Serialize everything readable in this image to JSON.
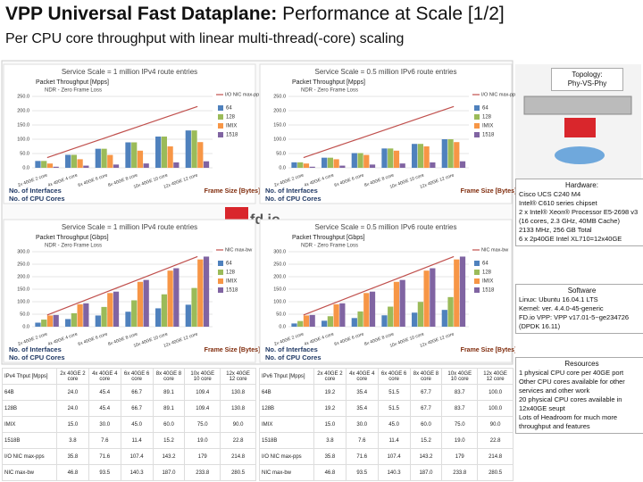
{
  "header": {
    "title_bold": "VPP Universal Fast Dataplane:",
    "title_rest": "Performance at Scale [1/2]",
    "subtitle": "Per CPU core throughput with linear multi-thread(-core) scaling"
  },
  "charts": [
    {
      "type": "bar",
      "title": "Service Scale = 1 million IPv4 route entries",
      "y_label": "Packet Throughput [Mpps]",
      "note": "NDR - Zero Frame Loss",
      "x_label": [
        "No. of Interfaces",
        "No. of CPU Cores"
      ],
      "z_label": "Frame Size [Bytes]",
      "categories": [
        "2x 40GE 2 core",
        "4x 40GE 4 core",
        "6x 40GE 6 core",
        "8x 40GE 8 core",
        "10x 40GE 10 core",
        "12x 40GE 12 core"
      ],
      "ylim": [
        0,
        250
      ],
      "yticks": [
        {
          "value": 0,
          "label": "0.0"
        },
        {
          "value": 50,
          "label": "50.0"
        },
        {
          "value": 100,
          "label": "100.0"
        },
        {
          "value": 150,
          "label": "150.0"
        },
        {
          "value": 200,
          "label": "200.0"
        },
        {
          "value": 250,
          "label": "250.0"
        }
      ],
      "series": [
        {
          "name": "64",
          "color": "#4f81bd",
          "values": [
            24.0,
            45.4,
            66.7,
            89.1,
            109.4,
            130.8
          ]
        },
        {
          "name": "128",
          "color": "#9bbb59",
          "values": [
            24.0,
            45.4,
            66.7,
            89.1,
            109.4,
            130.8
          ]
        },
        {
          "name": "IMIX",
          "color": "#f79646",
          "values": [
            15.0,
            30.0,
            45.0,
            60.0,
            75.0,
            90.0
          ]
        },
        {
          "name": "1518",
          "color": "#8064a2",
          "values": [
            3.8,
            7.6,
            11.4,
            15.2,
            19.0,
            22.8
          ]
        }
      ],
      "line": {
        "name": "I/O NIC max-pps",
        "color": "#c0504d",
        "values": [
          35.8,
          71.6,
          107.4,
          143.2,
          179,
          214.8
        ]
      }
    },
    {
      "type": "bar",
      "title": "Service Scale = 0.5 million IPv6 route entries",
      "y_label": "Packet Throughput [Mpps]",
      "note": "NDR - Zero Frame Loss",
      "x_label": [
        "No. of Interfaces",
        "No. of CPU Cores"
      ],
      "z_label": "Frame Size [Bytes]",
      "categories": [
        "2x 40GE 2 core",
        "4x 40GE 4 core",
        "6x 40GE 6 core",
        "8x 40GE 8 core",
        "10x 40GE 10 core",
        "12x 40GE 12 core"
      ],
      "ylim": [
        0,
        250
      ],
      "yticks": [
        {
          "value": 0,
          "label": "0.0"
        },
        {
          "value": 50,
          "label": "50.0"
        },
        {
          "value": 100,
          "label": "100.0"
        },
        {
          "value": 150,
          "label": "150.0"
        },
        {
          "value": 200,
          "label": "200.0"
        },
        {
          "value": 250,
          "label": "250.0"
        }
      ],
      "series": [
        {
          "name": "64",
          "color": "#4f81bd",
          "values": [
            19.2,
            35.4,
            51.5,
            67.7,
            83.7,
            100.0
          ]
        },
        {
          "name": "128",
          "color": "#9bbb59",
          "values": [
            19.2,
            35.4,
            51.5,
            67.7,
            83.7,
            100.0
          ]
        },
        {
          "name": "IMIX",
          "color": "#f79646",
          "values": [
            15.0,
            30.0,
            45.0,
            60.0,
            75.0,
            90.0
          ]
        },
        {
          "name": "1518",
          "color": "#8064a2",
          "values": [
            3.8,
            7.6,
            11.4,
            15.2,
            19.0,
            22.8
          ]
        }
      ],
      "line": {
        "name": "I/O NIC max-pps",
        "color": "#c0504d",
        "values": [
          35.8,
          71.6,
          107.4,
          143.2,
          179,
          214.8
        ]
      }
    },
    {
      "type": "bar",
      "title": "Service Scale = 1 million IPv4 route entries",
      "y_label": "Packet Throughput [Gbps]",
      "note": "NDR - Zero Frame Loss",
      "x_label": [
        "No. of Interfaces",
        "No. of CPU Cores"
      ],
      "z_label": "Frame Size [Bytes]",
      "categories": [
        "2x 40GE 2 core",
        "4x 40GE 4 core",
        "6x 40GE 6 core",
        "8x 40GE 8 core",
        "10x 40GE 10 core",
        "12x 40GE 12 core"
      ],
      "ylim": [
        0,
        300
      ],
      "yticks": [
        {
          "value": 0,
          "label": "0.0"
        },
        {
          "value": 50,
          "label": "50.0"
        },
        {
          "value": 100,
          "label": "100.0"
        },
        {
          "value": 150,
          "label": "150.0"
        },
        {
          "value": 200,
          "label": "200.0"
        },
        {
          "value": 250,
          "label": "250.0"
        },
        {
          "value": 300,
          "label": "300.0"
        }
      ],
      "series": [
        {
          "name": "64",
          "color": "#4f81bd",
          "values": [
            16.1,
            30.5,
            44.8,
            59.9,
            73.5,
            87.9
          ]
        },
        {
          "name": "128",
          "color": "#9bbb59",
          "values": [
            28.4,
            53.8,
            79.0,
            105.5,
            129.5,
            154.9
          ]
        },
        {
          "name": "IMIX",
          "color": "#f79646",
          "values": [
            44.9,
            89.7,
            134.6,
            179.4,
            224.3,
            269.1
          ]
        },
        {
          "name": "1518",
          "color": "#8064a2",
          "values": [
            46.8,
            93.5,
            140.3,
            187.0,
            233.8,
            280.5
          ]
        }
      ],
      "line": {
        "name": "NIC max-bw",
        "color": "#c0504d",
        "values": [
          46.8,
          93.5,
          140.3,
          187.0,
          233.8,
          280.5
        ]
      }
    },
    {
      "type": "bar",
      "title": "Service Scale = 0.5 million IPv6 route entries",
      "y_label": "Packet Throughput [Gbps]",
      "note": "NDR - Zero Frame Loss",
      "x_label": [
        "No. of Interfaces",
        "No. of CPU Cores"
      ],
      "z_label": "Frame Size [Bytes]",
      "categories": [
        "2x 40GE 2 core",
        "4x 40GE 4 core",
        "6x 40GE 6 core",
        "8x 40GE 8 core",
        "10x 40GE 10 core",
        "12x 40GE 12 core"
      ],
      "ylim": [
        0,
        300
      ],
      "yticks": [
        {
          "value": 0,
          "label": "0.0"
        },
        {
          "value": 50,
          "label": "50.0"
        },
        {
          "value": 100,
          "label": "100.0"
        },
        {
          "value": 150,
          "label": "150.0"
        },
        {
          "value": 200,
          "label": "200.0"
        },
        {
          "value": 250,
          "label": "250.0"
        },
        {
          "value": 300,
          "label": "300.0"
        }
      ],
      "series": [
        {
          "name": "64",
          "color": "#4f81bd",
          "values": [
            12.9,
            23.8,
            34.6,
            45.5,
            56.2,
            67.2
          ]
        },
        {
          "name": "128",
          "color": "#9bbb59",
          "values": [
            22.7,
            41.9,
            61.0,
            80.2,
            99.1,
            118.4
          ]
        },
        {
          "name": "IMIX",
          "color": "#f79646",
          "values": [
            44.9,
            89.7,
            134.6,
            179.4,
            224.3,
            269.1
          ]
        },
        {
          "name": "1518",
          "color": "#8064a2",
          "values": [
            46.8,
            93.5,
            140.3,
            187.0,
            233.8,
            280.5
          ]
        }
      ],
      "line": {
        "name": "NIC max-bw",
        "color": "#c0504d",
        "values": [
          46.8,
          93.5,
          140.3,
          187.0,
          233.8,
          280.5
        ]
      }
    }
  ],
  "logo": "fd.io",
  "tables": [
    {
      "rows": [
        [
          "IPv4 Thput [Mpps]",
          "2x 40GE 2 core",
          "4x 40GE 4 core",
          "6x 40GE 6 core",
          "8x 40GE 8 core",
          "10x 40GE 10 core",
          "12x 40GE 12 core"
        ],
        [
          "64B",
          "24.0",
          "45.4",
          "66.7",
          "89.1",
          "109.4",
          "130.8"
        ],
        [
          "128B",
          "24.0",
          "45.4",
          "66.7",
          "89.1",
          "109.4",
          "130.8"
        ],
        [
          "IMIX",
          "15.0",
          "30.0",
          "45.0",
          "60.0",
          "75.0",
          "90.0"
        ],
        [
          "1518B",
          "3.8",
          "7.6",
          "11.4",
          "15.2",
          "19.0",
          "22.8"
        ],
        [
          "I/O NIC max-pps",
          "35.8",
          "71.6",
          "107.4",
          "143.2",
          "179",
          "214.8"
        ],
        [
          "NIC max-bw",
          "46.8",
          "93.5",
          "140.3",
          "187.0",
          "233.8",
          "280.5"
        ]
      ]
    },
    {
      "rows": [
        [
          "IPv6 Thput [Mpps]",
          "2x 40GE 2 core",
          "4x 40GE 4 core",
          "6x 40GE 6 core",
          "8x 40GE 8 core",
          "10x 40GE 10 core",
          "12x 40GE 12 core"
        ],
        [
          "64B",
          "19.2",
          "35.4",
          "51.5",
          "67.7",
          "83.7",
          "100.0"
        ],
        [
          "128B",
          "19.2",
          "35.4",
          "51.5",
          "67.7",
          "83.7",
          "100.0"
        ],
        [
          "IMIX",
          "15.0",
          "30.0",
          "45.0",
          "60.0",
          "75.0",
          "90.0"
        ],
        [
          "1518B",
          "3.8",
          "7.6",
          "11.4",
          "15.2",
          "19.0",
          "22.8"
        ],
        [
          "I/O NIC max-pps",
          "35.8",
          "71.6",
          "107.4",
          "143.2",
          "179",
          "214.8"
        ],
        [
          "NIC max-bw",
          "46.8",
          "93.5",
          "140.3",
          "187.0",
          "233.8",
          "280.5"
        ]
      ]
    }
  ],
  "sidebar": {
    "topology": [
      "Topology:",
      "Phy-VS-Phy"
    ],
    "hardware": {
      "heading": "Hardware:",
      "lines": [
        "Cisco UCS C240 M4",
        "Intel® C610 series chipset",
        "2 x Intel® Xeon® Processor E5-2698 v3 (16 cores, 2.3 GHz, 40MB Cache)",
        "2133 MHz, 256 GB Total",
        "6 x 2p40GE Intel XL710=12x40GE"
      ]
    },
    "software": {
      "heading": "Software",
      "lines": [
        "Linux: Ubuntu 16.04.1 LTS",
        "Kernel: ver. 4.4.0-45-generic",
        "FD.io VPP: VPP v17.01-5~ge234726 (DPDK 16.11)"
      ]
    },
    "resources": {
      "heading": "Resources",
      "lines": [
        "1 physical CPU core per 40GE port",
        "Other CPU cores available for other services and other work",
        "20 physical CPU cores available in 12x40GE seupt",
        "Lots of Headroom for much more throughput and features"
      ]
    }
  }
}
